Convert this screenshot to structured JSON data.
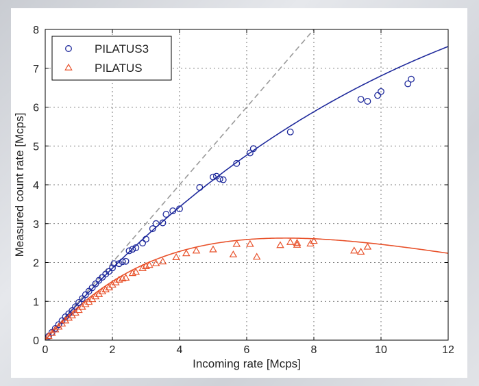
{
  "chart_data": {
    "type": "scatter",
    "xlabel": "Incoming rate [Mcps]",
    "ylabel": "Measured count rate [Mcps]",
    "xlim": [
      0,
      12
    ],
    "ylim": [
      0,
      8
    ],
    "xticks": [
      0,
      2,
      4,
      6,
      8,
      10,
      12
    ],
    "yticks": [
      0,
      1,
      2,
      3,
      4,
      5,
      6,
      7,
      8
    ],
    "grid": true,
    "legend_position": "top-left",
    "colors": {
      "pilatus3": "#1f2a9c",
      "pilatus": "#e8512a",
      "ideal": "#9a9a9a",
      "grid": "#555555"
    },
    "series": [
      {
        "name": "PILATUS3",
        "marker": "circle",
        "points": [
          [
            0.1,
            0.1
          ],
          [
            0.2,
            0.2
          ],
          [
            0.3,
            0.3
          ],
          [
            0.4,
            0.4
          ],
          [
            0.5,
            0.5
          ],
          [
            0.6,
            0.6
          ],
          [
            0.7,
            0.68
          ],
          [
            0.8,
            0.76
          ],
          [
            0.9,
            0.86
          ],
          [
            1.0,
            0.97
          ],
          [
            1.1,
            1.07
          ],
          [
            1.2,
            1.17
          ],
          [
            1.3,
            1.26
          ],
          [
            1.4,
            1.35
          ],
          [
            1.5,
            1.45
          ],
          [
            1.6,
            1.54
          ],
          [
            1.7,
            1.62
          ],
          [
            1.8,
            1.7
          ],
          [
            1.9,
            1.77
          ],
          [
            2.0,
            1.86
          ],
          [
            2.05,
            1.97
          ],
          [
            2.2,
            1.97
          ],
          [
            2.3,
            2.02
          ],
          [
            2.4,
            2.03
          ],
          [
            2.5,
            2.3
          ],
          [
            2.6,
            2.34
          ],
          [
            2.7,
            2.38
          ],
          [
            2.9,
            2.5
          ],
          [
            3.0,
            2.6
          ],
          [
            3.2,
            2.87
          ],
          [
            3.3,
            3.0
          ],
          [
            3.5,
            3.02
          ],
          [
            3.6,
            3.24
          ],
          [
            3.8,
            3.33
          ],
          [
            4.0,
            3.38
          ],
          [
            4.6,
            3.93
          ],
          [
            5.0,
            4.2
          ],
          [
            5.1,
            4.22
          ],
          [
            5.2,
            4.15
          ],
          [
            5.3,
            4.13
          ],
          [
            5.7,
            4.55
          ],
          [
            6.1,
            4.82
          ],
          [
            6.2,
            4.93
          ],
          [
            7.3,
            5.36
          ],
          [
            9.4,
            6.2
          ],
          [
            9.6,
            6.15
          ],
          [
            9.9,
            6.3
          ],
          [
            10.0,
            6.4
          ],
          [
            10.8,
            6.6
          ],
          [
            10.9,
            6.72
          ]
        ],
        "fit": "paralyzable",
        "tau_s": 3.85e-08
      },
      {
        "name": "PILATUS",
        "marker": "triangle",
        "points": [
          [
            0.1,
            0.1
          ],
          [
            0.2,
            0.18
          ],
          [
            0.3,
            0.27
          ],
          [
            0.4,
            0.34
          ],
          [
            0.5,
            0.42
          ],
          [
            0.6,
            0.5
          ],
          [
            0.7,
            0.57
          ],
          [
            0.8,
            0.63
          ],
          [
            0.9,
            0.7
          ],
          [
            1.0,
            0.77
          ],
          [
            1.1,
            0.85
          ],
          [
            1.2,
            0.92
          ],
          [
            1.3,
            0.98
          ],
          [
            1.4,
            1.05
          ],
          [
            1.5,
            1.12
          ],
          [
            1.6,
            1.18
          ],
          [
            1.7,
            1.25
          ],
          [
            1.8,
            1.3
          ],
          [
            1.9,
            1.35
          ],
          [
            2.0,
            1.42
          ],
          [
            2.1,
            1.48
          ],
          [
            2.2,
            1.55
          ],
          [
            2.3,
            1.58
          ],
          [
            2.4,
            1.6
          ],
          [
            2.6,
            1.72
          ],
          [
            2.7,
            1.75
          ],
          [
            2.9,
            1.85
          ],
          [
            3.0,
            1.9
          ],
          [
            3.1,
            1.93
          ],
          [
            3.3,
            1.97
          ],
          [
            3.5,
            2.02
          ],
          [
            3.9,
            2.13
          ],
          [
            4.2,
            2.23
          ],
          [
            4.5,
            2.3
          ],
          [
            5.0,
            2.33
          ],
          [
            5.6,
            2.2
          ],
          [
            5.7,
            2.47
          ],
          [
            6.1,
            2.47
          ],
          [
            6.3,
            2.14
          ],
          [
            7.0,
            2.44
          ],
          [
            7.3,
            2.52
          ],
          [
            7.5,
            2.45
          ],
          [
            7.5,
            2.5
          ],
          [
            7.9,
            2.48
          ],
          [
            8.0,
            2.55
          ],
          [
            9.2,
            2.3
          ],
          [
            9.4,
            2.27
          ],
          [
            9.6,
            2.4
          ]
        ],
        "fit": "paralyzable",
        "tau_s": 1.4e-07
      }
    ]
  }
}
